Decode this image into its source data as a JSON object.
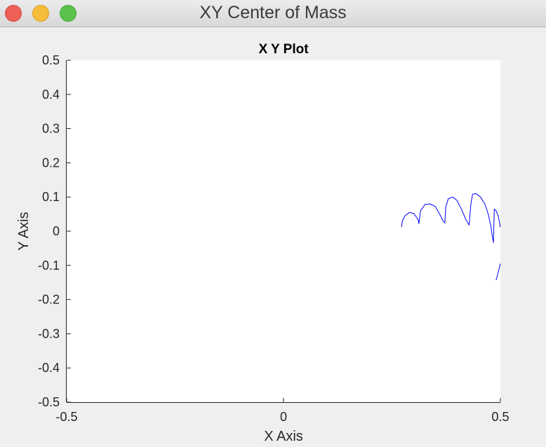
{
  "window": {
    "title": "XY Center of Mass"
  },
  "chart_data": {
    "type": "line",
    "title": "X Y Plot",
    "xlabel": "X Axis",
    "ylabel": "Y Axis",
    "xlim": [
      -0.5,
      0.5
    ],
    "ylim": [
      -0.5,
      0.5
    ],
    "x_ticks": [
      -0.5,
      0,
      0.5
    ],
    "x_tick_labels": [
      "-0.5",
      "0",
      "0.5"
    ],
    "y_ticks": [
      0.5,
      0.4,
      0.3,
      0.2,
      0.1,
      0,
      -0.1,
      -0.2,
      -0.3,
      -0.4,
      -0.5
    ],
    "y_tick_labels": [
      "0.5",
      "0.4",
      "0.3",
      "0.2",
      "0.1",
      "0",
      "-0.1",
      "-0.2",
      "-0.3",
      "-0.4",
      "-0.5"
    ],
    "grid": false,
    "line_color": "#0000ff",
    "series": [
      {
        "x": [
          0.272,
          0.274,
          0.28,
          0.29,
          0.3,
          0.31,
          0.312,
          0.316,
          0.326,
          0.338,
          0.35,
          0.36,
          0.368,
          0.372,
          0.374,
          0.38,
          0.39,
          0.4,
          0.41,
          0.42,
          0.428,
          0.432,
          0.436,
          0.444,
          0.454,
          0.464,
          0.472,
          0.478,
          0.482,
          0.484,
          0.486,
          0.49,
          0.495,
          0.498,
          0.5
        ],
        "y": [
          0.012,
          0.03,
          0.045,
          0.055,
          0.052,
          0.035,
          0.022,
          0.06,
          0.078,
          0.08,
          0.072,
          0.05,
          0.03,
          0.024,
          0.07,
          0.095,
          0.1,
          0.09,
          0.065,
          0.035,
          0.018,
          0.08,
          0.108,
          0.11,
          0.1,
          0.08,
          0.05,
          0.015,
          -0.02,
          -0.033,
          0.065,
          0.06,
          0.045,
          0.025,
          0.012
        ]
      },
      {
        "x": [
          0.5,
          0.498,
          0.496,
          0.493,
          0.49
        ],
        "y": [
          -0.095,
          -0.105,
          -0.115,
          -0.13,
          -0.143
        ]
      }
    ]
  }
}
